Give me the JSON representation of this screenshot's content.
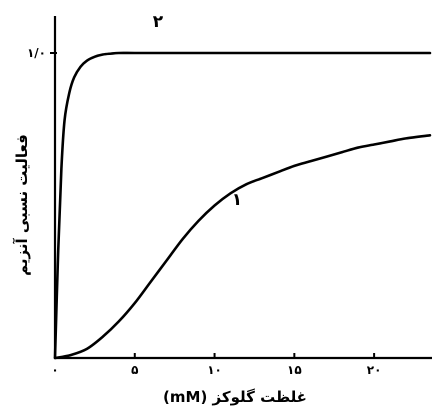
{
  "chart_data": {
    "type": "line",
    "title": "",
    "xlabel": "غلظت گلوکز (mM)",
    "ylabel": "فعالیت نسبی آنزیم",
    "xlim": [
      0,
      23.5
    ],
    "ylim": [
      0,
      1.04
    ],
    "x_ticks": [
      {
        "value": 0,
        "label": "۰"
      },
      {
        "value": 5,
        "label": "۵"
      },
      {
        "value": 10,
        "label": "۱۰"
      },
      {
        "value": 15,
        "label": "۱۵"
      },
      {
        "value": 20,
        "label": "۲۰"
      }
    ],
    "y_ticks": [
      {
        "value": 1.0,
        "label": "۱/۰"
      }
    ],
    "grid": false,
    "series": [
      {
        "name": "۲",
        "x": [
          0,
          0.2,
          0.4,
          0.6,
          0.9,
          1.2,
          1.6,
          2.0,
          2.5,
          3.0,
          3.5,
          4.0,
          5.0,
          7.0,
          10,
          15,
          20,
          23.5
        ],
        "y": [
          0,
          0.35,
          0.62,
          0.78,
          0.87,
          0.92,
          0.955,
          0.975,
          0.988,
          0.995,
          0.998,
          1.0,
          1.0,
          1.0,
          1.0,
          1.0,
          1.0,
          1.0
        ]
      },
      {
        "name": "۱",
        "x": [
          0,
          1,
          2,
          3,
          4,
          5,
          6,
          7,
          8,
          9,
          10,
          11,
          12,
          13,
          14,
          15,
          16,
          17,
          18,
          19,
          20,
          21,
          22,
          23.5
        ],
        "y": [
          0,
          0.01,
          0.03,
          0.07,
          0.12,
          0.18,
          0.25,
          0.32,
          0.39,
          0.45,
          0.5,
          0.54,
          0.57,
          0.59,
          0.61,
          0.63,
          0.645,
          0.66,
          0.675,
          0.69,
          0.7,
          0.71,
          0.72,
          0.73
        ]
      }
    ]
  }
}
